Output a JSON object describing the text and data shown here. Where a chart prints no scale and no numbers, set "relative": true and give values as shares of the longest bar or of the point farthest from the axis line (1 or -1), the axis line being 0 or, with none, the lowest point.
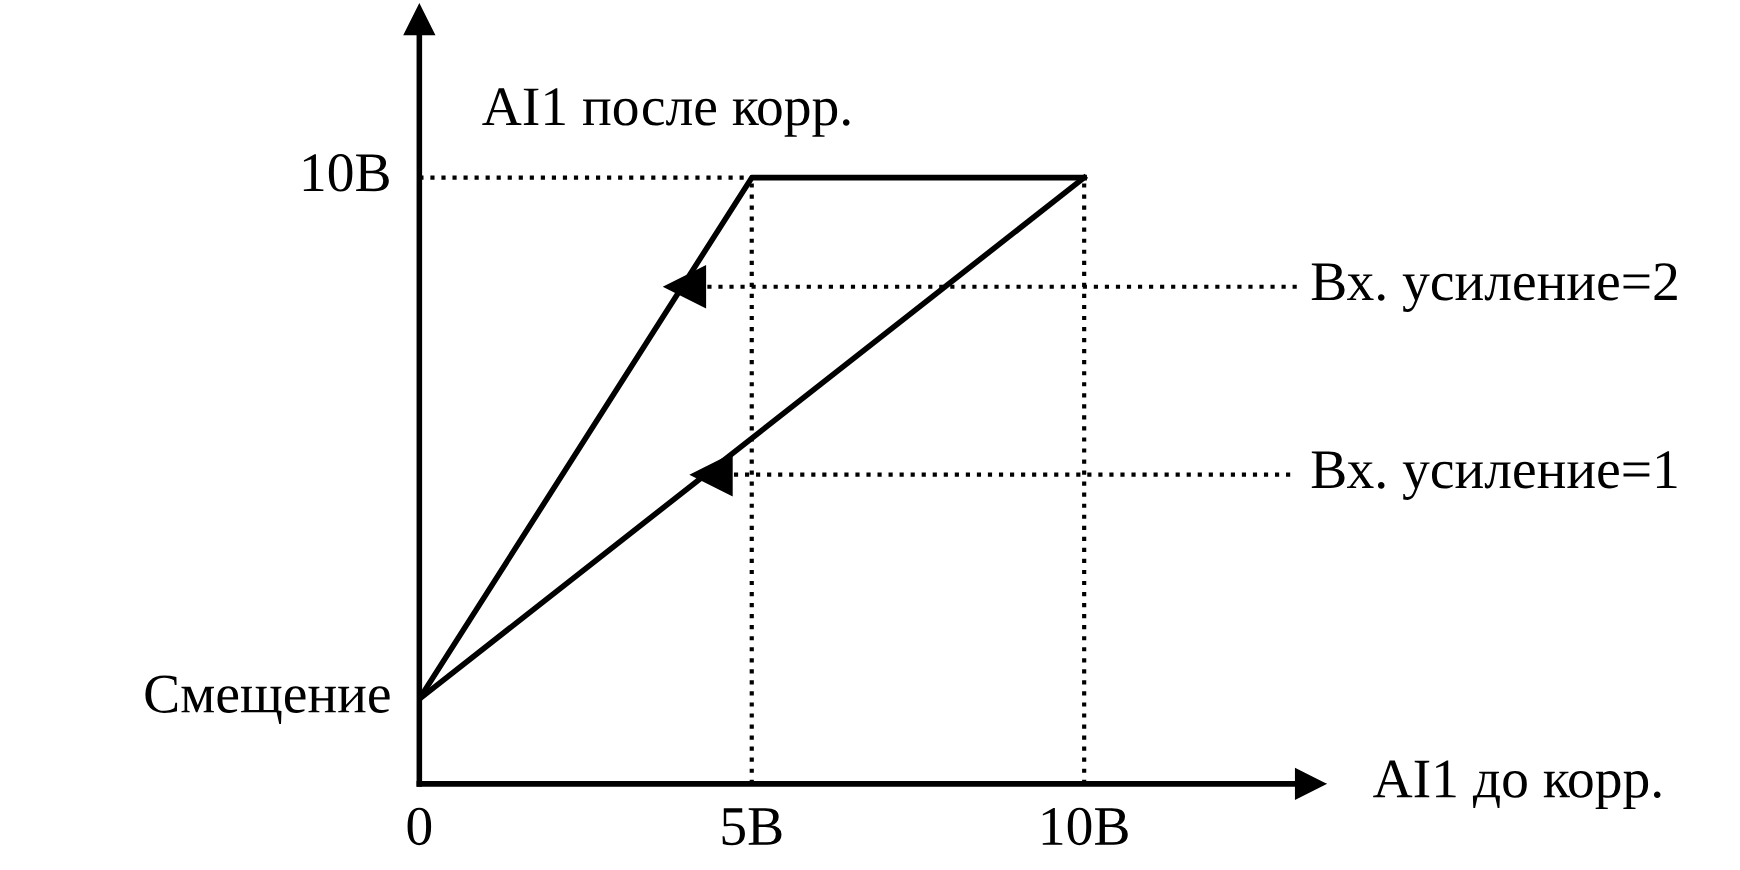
{
  "chart_data": {
    "type": "line",
    "relative": true,
    "xlabel": "AI1 до корр.",
    "ylabel": "AI1 после корр.",
    "xlim": [
      0,
      13.4
    ],
    "xticks": [
      0,
      {
        "value": 5,
        "label": "5В"
      },
      {
        "value": 10,
        "label": "10В"
      }
    ],
    "series": [
      {
        "color": "#000000",
        "x": [
          0,
          5,
          10
        ],
        "values": [
          0.14,
          1,
          1
        ]
      },
      {
        "color": "#000000",
        "x": [
          0,
          10
        ],
        "values": [
          0.14,
          1
        ]
      }
    ],
    "ref_lines": [
      {
        "axis": "y",
        "value": 1,
        "line_style": "dotted",
        "color": "#000000"
      },
      {
        "axis": "x",
        "value": 5,
        "line_style": "dotted",
        "color": "#000000"
      },
      {
        "axis": "x",
        "value": 10,
        "line_style": "dotted",
        "color": "#000000"
      }
    ],
    "annotations": [
      {
        "text": "10В",
        "x": 0,
        "y": 1
      },
      {
        "text": "Смещение",
        "x": 0,
        "y": 0.14
      },
      {
        "text": "Вх. усиление=2",
        "x": 4.0,
        "y": 0.82
      },
      {
        "text": "Вх. усиление=1",
        "x": 4.4,
        "y": 0.51
      }
    ],
    "grid": false,
    "legend": false,
    "marker": "none",
    "line_style": "solid"
  }
}
